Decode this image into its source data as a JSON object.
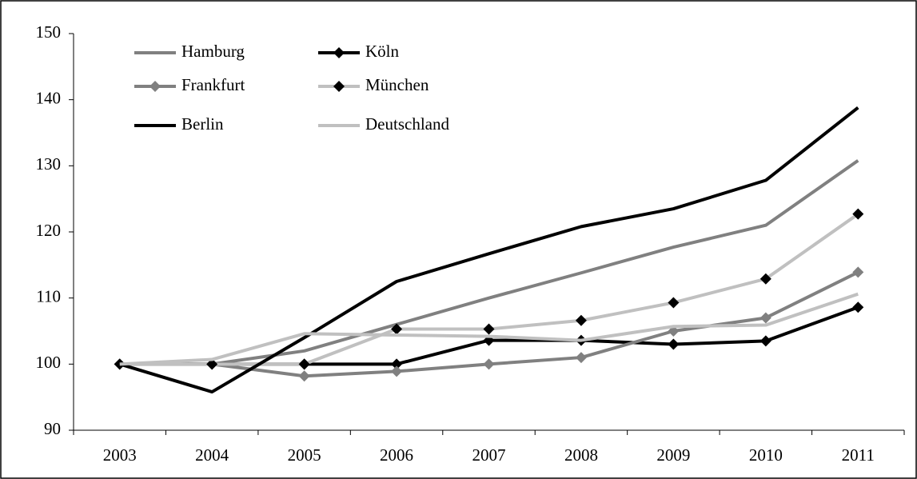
{
  "chart_data": {
    "type": "line",
    "categories": [
      "2003",
      "2004",
      "2005",
      "2006",
      "2007",
      "2008",
      "2009",
      "2010",
      "2011"
    ],
    "series": [
      {
        "name": "Hamburg",
        "color": "#808080",
        "marker": "none",
        "values": [
          100,
          100,
          102,
          106,
          110,
          113.8,
          117.7,
          121,
          130.8
        ]
      },
      {
        "name": "Köln",
        "color": "#000000",
        "marker": "diamond",
        "marker_color": "#000000",
        "values": [
          100,
          100,
          100,
          100,
          103.6,
          103.6,
          103,
          103.5,
          108.6
        ]
      },
      {
        "name": "Frankfurt",
        "color": "#808080",
        "marker": "diamond",
        "marker_color": "#808080",
        "values": [
          100,
          100,
          98.2,
          98.9,
          100,
          101,
          105,
          107,
          113.9
        ]
      },
      {
        "name": "München",
        "color": "#c0c0c0",
        "marker": "diamond",
        "marker_color": "#000000",
        "values": [
          100,
          100,
          100,
          105.3,
          105.3,
          106.6,
          109.3,
          112.9,
          122.7
        ]
      },
      {
        "name": "Berlin",
        "color": "#000000",
        "marker": "none",
        "values": [
          100,
          95.8,
          104,
          112.5,
          116.7,
          120.8,
          123.5,
          127.8,
          138.8
        ]
      },
      {
        "name": "Deutschland",
        "color": "#c0c0c0",
        "marker": "none",
        "values": [
          100,
          100.7,
          104.6,
          104.4,
          104.2,
          103.6,
          105.7,
          105.9,
          110.6
        ]
      }
    ],
    "ylim": [
      90,
      150
    ],
    "yticks": [
      90,
      100,
      110,
      120,
      130,
      140,
      150
    ],
    "grid": false,
    "legend": "top-left"
  }
}
